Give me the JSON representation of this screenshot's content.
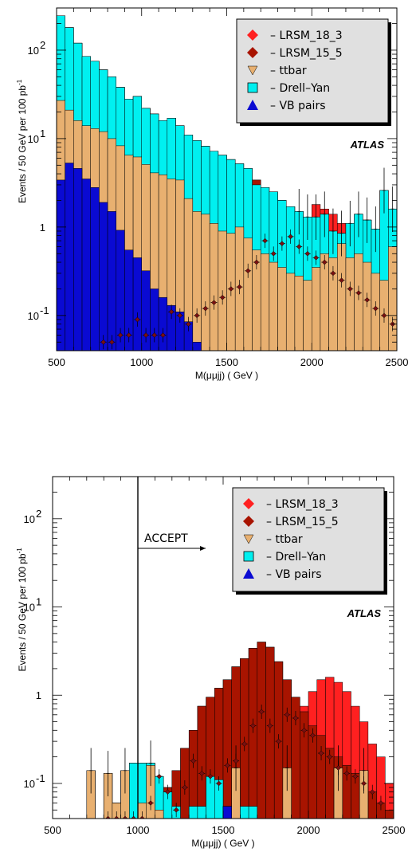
{
  "colors": {
    "lrsm_18_3": "#ff2020",
    "lrsm_15_5": "#a81400",
    "ttbar": "#e8b070",
    "drell_yan": "#00f0f0",
    "vb_pairs": "#0a0ad2",
    "point": "#7a1010"
  },
  "chart_data": [
    {
      "type": "histogram",
      "title": "",
      "xlabel": "M(μμjj) ( GeV )",
      "ylabel": "Events / 50 GeV per 100 pb",
      "ylabel_sup": "-1",
      "xlim": [
        500,
        2500
      ],
      "ylim": [
        0.04,
        300
      ],
      "log_y": true,
      "bin_width": 50,
      "x_ticks": [
        "500",
        "1000",
        "1500",
        "2000",
        "2500"
      ],
      "y_ticks": [
        {
          "base": "10",
          "exp": "-1",
          "value": 0.1
        },
        {
          "base": "1",
          "exp": "",
          "value": 1
        },
        {
          "base": "10",
          "exp": "1",
          "value": 10
        },
        {
          "base": "10",
          "exp": "2",
          "value": 100
        }
      ],
      "annotation": "ATLAS",
      "accept_label": "",
      "accept_x": null,
      "legend": [
        "– LRSM_18_3",
        "– LRSM_15_5",
        "– ttbar",
        "– Drell–Yan",
        "– VB pairs"
      ],
      "stack": {
        "vb_pairs": [
          3.4,
          5.3,
          4.6,
          3.5,
          2.8,
          1.9,
          1.5,
          0.92,
          0.55,
          0.45,
          0.32,
          0.2,
          0.16,
          0.13,
          0.11,
          0.085,
          0.05,
          0.04,
          0.04,
          0.04,
          0.04,
          0.04,
          0.04,
          0.04,
          0.04,
          0.04,
          0.04,
          0.04,
          0.04,
          0.04,
          0.04,
          0.04,
          0.04,
          0.04,
          0.04,
          0.04,
          0.04,
          0.04,
          0.04,
          0.04
        ],
        "ttbar": [
          27,
          21,
          16,
          14,
          13,
          12,
          10,
          8.3,
          6.5,
          6.2,
          5.1,
          4.1,
          3.9,
          3.5,
          3.4,
          2.1,
          1.5,
          1.4,
          1.1,
          0.9,
          0.85,
          1.0,
          0.75,
          0.55,
          0.5,
          0.4,
          0.35,
          0.3,
          0.28,
          0.25,
          0.35,
          0.5,
          0.45,
          0.65,
          0.45,
          0.5,
          0.4,
          0.3,
          0.25,
          0.6
        ],
        "drell_yan": [
          245,
          180,
          120,
          85,
          75,
          60,
          50,
          38,
          28,
          30,
          22,
          19,
          16,
          17,
          14,
          11,
          9.5,
          8.2,
          7.2,
          6.5,
          5.8,
          5.2,
          4.6,
          3.0,
          2.8,
          2.5,
          2.0,
          1.7,
          1.5,
          1.3,
          1.3,
          1.4,
          0.9,
          0.85,
          1.1,
          1.4,
          1.2,
          0.95,
          2.6,
          1.6
        ],
        "lrsm_15_5": [
          0.04,
          0.04,
          0.05,
          0.04,
          0.06,
          0.08,
          0.09,
          0.11,
          0.14,
          0.18,
          0.21,
          0.31,
          0.45,
          0.7,
          0.95,
          1.1,
          1.4,
          1.7,
          2.1,
          2.6,
          3.1,
          3.8,
          4.0,
          3.4,
          2.6,
          1.7,
          1.2,
          0.85,
          0.6,
          0.5,
          0.38,
          0.3,
          0.25,
          0.2,
          0.16,
          0.14,
          0.12,
          0.11,
          0.09,
          0.07
        ],
        "lrsm_18_3": [
          0.04,
          0.04,
          0.04,
          0.04,
          0.04,
          0.04,
          0.04,
          0.04,
          0.04,
          0.04,
          0.04,
          0.04,
          0.04,
          0.04,
          0.04,
          0.04,
          0.06,
          0.09,
          0.11,
          0.14,
          0.18,
          0.2,
          0.35,
          0.45,
          0.62,
          0.95,
          0.75,
          0.6,
          0.95,
          1.3,
          1.8,
          1.6,
          1.4,
          1.1,
          0.85,
          0.7,
          0.45,
          0.35,
          0.2,
          0.18
        ]
      },
      "points": {
        "x": [
          775,
          825,
          875,
          925,
          975,
          1025,
          1075,
          1125,
          1175,
          1225,
          1275,
          1325,
          1375,
          1425,
          1475,
          1525,
          1575,
          1625,
          1675,
          1725,
          1775,
          1825,
          1875,
          1925,
          1975,
          2025,
          2075,
          2125,
          2175,
          2225,
          2275,
          2325,
          2375,
          2425,
          2475
        ],
        "y": [
          0.05,
          0.05,
          0.06,
          0.06,
          0.09,
          0.06,
          0.06,
          0.06,
          0.11,
          0.1,
          0.08,
          0.1,
          0.12,
          0.14,
          0.16,
          0.2,
          0.21,
          0.32,
          0.4,
          0.7,
          0.5,
          0.65,
          0.78,
          0.6,
          0.5,
          0.45,
          0.4,
          0.3,
          0.25,
          0.2,
          0.18,
          0.15,
          0.12,
          0.1,
          0.08
        ]
      }
    },
    {
      "type": "histogram",
      "title": "",
      "xlabel": "M(μμjj) ( GeV )",
      "ylabel": "Events / 50 GeV per 100 pb",
      "ylabel_sup": "-1",
      "xlim": [
        500,
        2500
      ],
      "ylim": [
        0.04,
        300
      ],
      "log_y": true,
      "bin_width": 50,
      "x_ticks": [
        "500",
        "1000",
        "1500",
        "2000",
        "2500"
      ],
      "y_ticks": [
        {
          "base": "10",
          "exp": "-1",
          "value": 0.1
        },
        {
          "base": "1",
          "exp": "",
          "value": 1
        },
        {
          "base": "10",
          "exp": "1",
          "value": 10
        },
        {
          "base": "10",
          "exp": "2",
          "value": 100
        }
      ],
      "annotation": "ATLAS",
      "accept_label": "ACCEPT",
      "accept_x": 1000,
      "legend": [
        "– LRSM_18_3",
        "– LRSM_15_5",
        "– ttbar",
        "– Drell–Yan",
        "– VB pairs"
      ],
      "stack": {
        "vb_pairs": [
          0.04,
          0.04,
          0.04,
          0.04,
          0.04,
          0.04,
          0.04,
          0.04,
          0.04,
          0.04,
          0.04,
          0.04,
          0.04,
          0.04,
          0.04,
          0.04,
          0.04,
          0.04,
          0.04,
          0.04,
          0.055,
          0.04,
          0.04,
          0.04,
          0.04,
          0.04,
          0.04,
          0.04,
          0.04,
          0.04,
          0.04,
          0.04,
          0.04,
          0.04,
          0.04,
          0.04,
          0.04,
          0.04,
          0.04,
          0.04
        ],
        "ttbar": [
          0.04,
          0.04,
          0.04,
          0.04,
          0.14,
          0.04,
          0.13,
          0.06,
          0.14,
          0.04,
          0.06,
          0.16,
          0.05,
          0.04,
          0.04,
          0.04,
          0.04,
          0.04,
          0.04,
          0.04,
          0.04,
          0.15,
          0.04,
          0.04,
          0.04,
          0.04,
          0.04,
          0.15,
          0.04,
          0.04,
          0.04,
          0.04,
          0.04,
          0.15,
          0.04,
          0.04,
          0.14,
          0.04,
          0.04,
          0.04
        ],
        "drell_yan": [
          0.04,
          0.04,
          0.04,
          0.04,
          0.055,
          0.04,
          0.055,
          0.04,
          0.14,
          0.17,
          0.17,
          0.17,
          0.12,
          0.08,
          0.055,
          0.04,
          0.055,
          0.055,
          0.12,
          0.11,
          0.055,
          0.055,
          0.055,
          0.055,
          0.04,
          0.04,
          0.04,
          0.055,
          0.04,
          0.04,
          0.04,
          0.04,
          0.04,
          0.04,
          0.04,
          0.04,
          0.04,
          0.04,
          0.04,
          0.04
        ],
        "lrsm_15_5": [
          0.04,
          0.04,
          0.04,
          0.04,
          0.04,
          0.04,
          0.04,
          0.04,
          0.04,
          0.04,
          0.04,
          0.04,
          0.05,
          0.09,
          0.14,
          0.25,
          0.4,
          0.75,
          0.95,
          1.2,
          1.5,
          2.1,
          2.6,
          3.4,
          4.0,
          3.5,
          2.4,
          1.5,
          0.95,
          0.65,
          0.45,
          0.35,
          0.25,
          0.2,
          0.16,
          0.13,
          0.1,
          0.08,
          0.06,
          0.05
        ],
        "lrsm_18_3": [
          0.04,
          0.04,
          0.04,
          0.04,
          0.04,
          0.04,
          0.04,
          0.04,
          0.04,
          0.04,
          0.04,
          0.04,
          0.04,
          0.04,
          0.04,
          0.04,
          0.04,
          0.04,
          0.04,
          0.04,
          0.04,
          0.04,
          0.06,
          0.09,
          0.12,
          0.15,
          0.22,
          0.35,
          0.55,
          0.75,
          1.1,
          1.5,
          1.6,
          1.4,
          1.1,
          0.75,
          0.5,
          0.28,
          0.2,
          0.1
        ]
      },
      "points": {
        "x": [
          825,
          875,
          925,
          975,
          1025,
          1075,
          1125,
          1175,
          1225,
          1275,
          1325,
          1375,
          1425,
          1475,
          1525,
          1575,
          1625,
          1675,
          1725,
          1775,
          1825,
          1875,
          1925,
          1975,
          2025,
          2075,
          2125,
          2175,
          2225,
          2275,
          2325,
          2375,
          2425
        ],
        "y": [
          0.04,
          0.04,
          0.04,
          0.04,
          0.04,
          0.06,
          0.12,
          0.08,
          0.05,
          0.09,
          0.18,
          0.13,
          0.12,
          0.1,
          0.16,
          0.18,
          0.28,
          0.45,
          0.65,
          0.45,
          0.3,
          0.6,
          0.55,
          0.4,
          0.35,
          0.22,
          0.2,
          0.15,
          0.13,
          0.12,
          0.1,
          0.08,
          0.06
        ]
      }
    }
  ]
}
